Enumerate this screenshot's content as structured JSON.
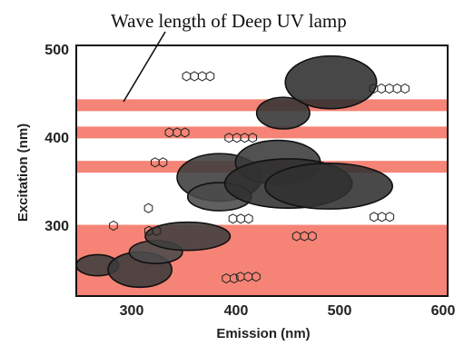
{
  "chart_data": {
    "type": "scatter",
    "annotation": "Wave length of Deep UV lamp",
    "xlabel": "Emission (nm)",
    "ylabel": "Excitation (nm)",
    "xlim": [
      250,
      600
    ],
    "ylim": [
      220,
      505
    ],
    "x_ticks": [
      "300",
      "400",
      "500",
      "600"
    ],
    "x_tick_values": [
      300,
      400,
      500,
      600
    ],
    "y_ticks": [
      "300",
      "400",
      "500"
    ],
    "y_tick_values": [
      300,
      400,
      500
    ],
    "lamp_color": "#f47a6a",
    "lamp_lines_nm": [
      437,
      406,
      367
    ],
    "lamp_band_nm": [
      220,
      301
    ],
    "regions": [
      {
        "emission": 270,
        "excitation": 255,
        "emission_span": 20,
        "excitation_span": 12,
        "shade": "#3d3d3d"
      },
      {
        "emission": 310,
        "excitation": 250,
        "emission_span": 30,
        "excitation_span": 20,
        "shade": "#3a3a3a"
      },
      {
        "emission": 325,
        "excitation": 270,
        "emission_span": 25,
        "excitation_span": 13,
        "shade": "#4a4a4a"
      },
      {
        "emission": 355,
        "excitation": 288,
        "emission_span": 40,
        "excitation_span": 16,
        "shade": "#3f3f3f"
      },
      {
        "emission": 385,
        "excitation": 355,
        "emission_span": 40,
        "excitation_span": 27,
        "shade": "#3c3c3c"
      },
      {
        "emission": 385,
        "excitation": 333,
        "emission_span": 30,
        "excitation_span": 16,
        "shade": "#4a4a4a"
      },
      {
        "emission": 440,
        "excitation": 372,
        "emission_span": 40,
        "excitation_span": 25,
        "shade": "#3a3a3a"
      },
      {
        "emission": 450,
        "excitation": 348,
        "emission_span": 60,
        "excitation_span": 28,
        "shade": "#303030"
      },
      {
        "emission": 488,
        "excitation": 345,
        "emission_span": 60,
        "excitation_span": 26,
        "shade": "#303030"
      },
      {
        "emission": 445,
        "excitation": 428,
        "emission_span": 25,
        "excitation_span": 18,
        "shade": "#333333"
      },
      {
        "emission": 490,
        "excitation": 463,
        "emission_span": 43,
        "excitation_span": 30,
        "shade": "#2e2e2e"
      }
    ],
    "structures": [
      {
        "id": "s1",
        "x": 285,
        "y": 300,
        "ring_count": 1
      },
      {
        "id": "s2",
        "x": 318,
        "y": 320,
        "ring_count": 1
      },
      {
        "id": "s3",
        "x": 322,
        "y": 294,
        "ring_count": 2
      },
      {
        "id": "s4",
        "x": 395,
        "y": 240,
        "ring_count": 2
      },
      {
        "id": "s5",
        "x": 412,
        "y": 242,
        "ring_count": 3
      },
      {
        "id": "s6",
        "x": 465,
        "y": 288,
        "ring_count": 3
      },
      {
        "id": "s7",
        "x": 328,
        "y": 372,
        "ring_count": 2
      },
      {
        "id": "s8",
        "x": 345,
        "y": 406,
        "ring_count": 3
      },
      {
        "id": "s9",
        "x": 405,
        "y": 400,
        "ring_count": 4
      },
      {
        "id": "s10",
        "x": 405,
        "y": 308,
        "ring_count": 3
      },
      {
        "id": "s11",
        "x": 538,
        "y": 310,
        "ring_count": 3
      },
      {
        "id": "s12",
        "x": 365,
        "y": 470,
        "ring_count": 4
      },
      {
        "id": "s13",
        "x": 545,
        "y": 456,
        "ring_count": 5
      }
    ]
  }
}
